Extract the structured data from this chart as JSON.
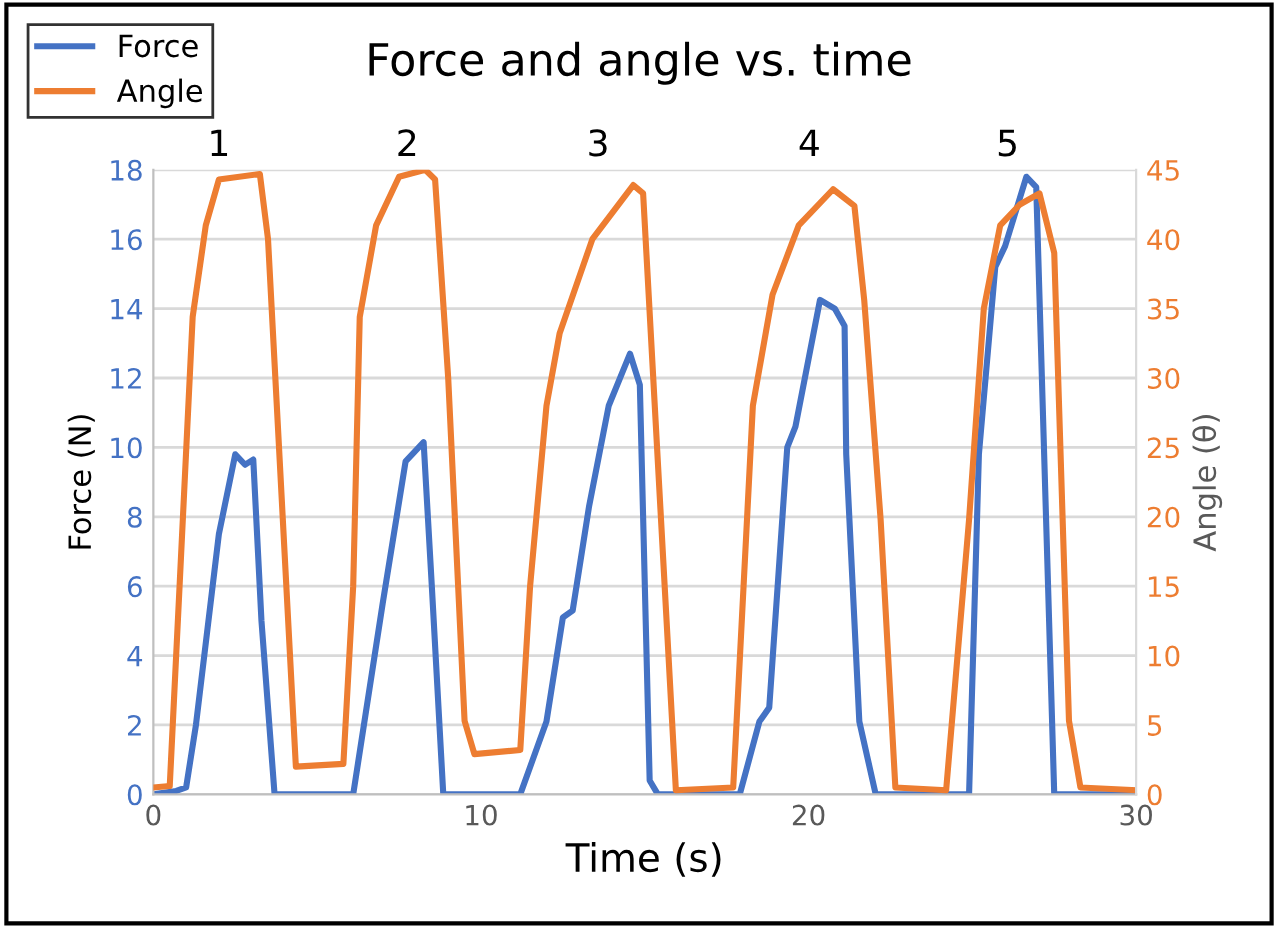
{
  "chart_data": {
    "type": "line",
    "title": "Force and angle vs. time",
    "xlabel": "Time (s)",
    "ylabel": "Force (N)",
    "y2label": "Angle (θ)",
    "series": [
      {
        "name": "Force",
        "color": "#4472c4",
        "x": [
          0,
          0.7,
          1.0,
          1.3,
          2.0,
          2.5,
          2.8,
          3.05,
          3.3,
          3.7,
          6.1,
          7.0,
          7.7,
          8.25,
          8.5,
          8.85,
          11.2,
          12.0,
          12.5,
          12.8,
          13.3,
          13.9,
          14.55,
          14.85,
          15.15,
          15.4,
          17.9,
          18.5,
          18.8,
          19.35,
          19.6,
          20.35,
          20.8,
          21.1,
          21.15,
          21.55,
          22.05,
          24.9,
          25.2,
          25.7,
          26.0,
          26.65,
          26.95,
          27.5,
          30
        ],
        "values": [
          0,
          0.1,
          0.2,
          2.0,
          7.5,
          9.8,
          9.5,
          9.65,
          5.0,
          0,
          0,
          5.5,
          9.6,
          10.15,
          6.0,
          0,
          0,
          2.1,
          5.1,
          5.3,
          8.3,
          11.2,
          12.7,
          11.8,
          0.4,
          0,
          0,
          2.1,
          2.5,
          10.0,
          10.6,
          14.25,
          14.0,
          13.5,
          9.8,
          2.1,
          0,
          0,
          9.8,
          15.2,
          15.8,
          17.8,
          17.5,
          0,
          0
        ]
      },
      {
        "name": "Angle",
        "color": "#ed7d31",
        "axis": "y2",
        "x": [
          0,
          0.5,
          0.8,
          1.2,
          1.6,
          2.0,
          3.25,
          3.5,
          4.35,
          5.8,
          6.1,
          6.3,
          6.8,
          7.5,
          8.3,
          8.6,
          9.0,
          9.5,
          9.8,
          11.2,
          11.5,
          12.0,
          12.4,
          13.4,
          14.65,
          14.95,
          15.95,
          17.7,
          18.3,
          18.9,
          19.7,
          20.75,
          21.4,
          21.7,
          22.2,
          22.65,
          24.2,
          24.9,
          25.35,
          25.85,
          26.45,
          27.05,
          27.5,
          27.95,
          28.3,
          30
        ],
        "values": [
          0.5,
          0.6,
          15,
          34.4,
          41,
          44.3,
          44.7,
          40,
          2.0,
          2.2,
          15,
          34.4,
          41,
          44.5,
          45,
          44.3,
          30,
          5.3,
          2.9,
          3.2,
          15,
          28,
          33.2,
          40,
          43.9,
          43.3,
          0.3,
          0.5,
          28,
          36,
          41,
          43.6,
          42.4,
          35.6,
          19.8,
          0.5,
          0.3,
          19.8,
          35,
          41,
          42.5,
          43.3,
          39,
          5.3,
          0.5,
          0.3
        ]
      }
    ],
    "xlim": [
      0,
      30
    ],
    "xticks": [
      0,
      10,
      20,
      30
    ],
    "ylim": [
      0,
      18
    ],
    "yticks": [
      0,
      2,
      4,
      6,
      8,
      10,
      12,
      14,
      16,
      18
    ],
    "y2lim": [
      0,
      45
    ],
    "y2ticks": [
      0,
      5,
      10,
      15,
      20,
      25,
      30,
      35,
      40,
      45
    ],
    "annotations": [
      "1",
      "2",
      "3",
      "4",
      "5"
    ],
    "grid": "y",
    "legend": "top left",
    "line_style": "solid",
    "marker": "none"
  }
}
